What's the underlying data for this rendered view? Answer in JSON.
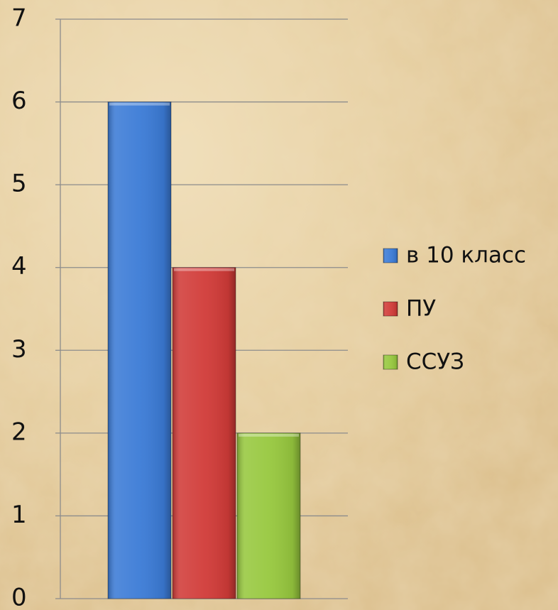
{
  "chart_data": {
    "type": "bar",
    "categories": [
      null
    ],
    "series": [
      {
        "name": "в 10 класс",
        "color": "#3b7bd6",
        "values": [
          6
        ]
      },
      {
        "name": "ПУ",
        "color": "#d13b38",
        "values": [
          4
        ]
      },
      {
        "name": "ССУЗ",
        "color": "#97c83e",
        "values": [
          2
        ]
      }
    ],
    "ylim": [
      0,
      7
    ],
    "yticks": [
      0,
      1,
      2,
      3,
      4,
      5,
      6,
      7
    ],
    "grid": true,
    "legend": "right"
  }
}
